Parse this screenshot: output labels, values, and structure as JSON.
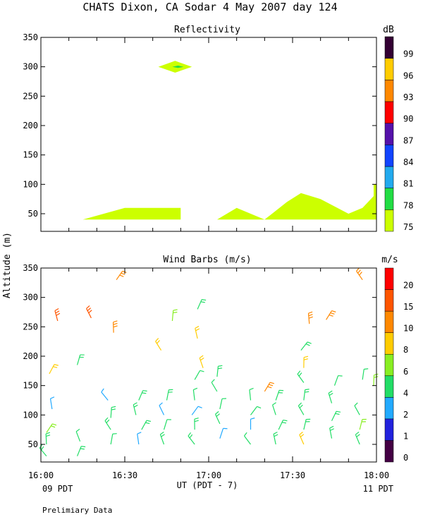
{
  "title": "CHATS Dixon, CA  Sodar   4 May 2007  day 124",
  "footer_note": "Prelimiary Data",
  "shared": {
    "ylabel": "Altitude (m)",
    "xlabel": "UT  (PDT - 7)",
    "x_ticks": [
      "16:00",
      "16:30",
      "17:00",
      "17:30",
      "18:00"
    ],
    "x_left_date": "09 PDT",
    "x_right_date": "11 PDT"
  },
  "chart_data": [
    {
      "type": "area",
      "title": "Reflectivity",
      "units": "dB",
      "y_ticks": [
        "50",
        "100",
        "150",
        "200",
        "250",
        "300",
        "350"
      ],
      "ylim": [
        20,
        350
      ],
      "xlim": [
        "16:00",
        "18:00"
      ],
      "colorbar_labels": [
        "75",
        "78",
        "81",
        "84",
        "87",
        "90",
        "93",
        "96",
        "99"
      ],
      "colorbar_colors": [
        "#ccff00",
        "#22dd44",
        "#22aaee",
        "#1144ff",
        "#5511aa",
        "#ff0000",
        "#ff8800",
        "#ffcc00",
        "#330033"
      ],
      "regions": [
        {
          "level": "75",
          "points": [
            [
              "16:15",
              40
            ],
            [
              "16:30",
              60
            ],
            [
              "16:50",
              60
            ],
            [
              "16:50",
              40
            ]
          ]
        },
        {
          "level": "75",
          "points": [
            [
              "17:03",
              40
            ],
            [
              "17:10",
              60
            ],
            [
              "17:20",
              40
            ],
            [
              "17:28",
              70
            ],
            [
              "17:33",
              85
            ],
            [
              "17:40",
              75
            ],
            [
              "17:50",
              50
            ],
            [
              "17:55",
              60
            ],
            [
              "17:59",
              80
            ],
            [
              "17:59",
              100
            ],
            [
              "18:00",
              100
            ],
            [
              "18:00",
              40
            ]
          ]
        },
        {
          "level": "75",
          "points": [
            [
              "16:42",
              300
            ],
            [
              "16:48",
              310
            ],
            [
              "16:54",
              300
            ],
            [
              "16:48",
              290
            ]
          ]
        },
        {
          "level": "78",
          "points": [
            [
              "16:47",
              300
            ],
            [
              "16:49",
              302
            ],
            [
              "16:51",
              300
            ],
            [
              "16:49",
              298
            ]
          ]
        }
      ]
    },
    {
      "type": "wind_barbs",
      "title": "Wind Barbs (m/s)",
      "units": "m/s",
      "y_ticks": [
        "50",
        "100",
        "150",
        "200",
        "250",
        "300",
        "350"
      ],
      "ylim": [
        20,
        350
      ],
      "xlim": [
        "16:00",
        "18:00"
      ],
      "colorbar_labels": [
        "0",
        "1",
        "2",
        "4",
        "6",
        "8",
        "10",
        "15",
        "20"
      ],
      "colorbar_colors": [
        "#440044",
        "#2222dd",
        "#22aaff",
        "#22dd66",
        "#88ee22",
        "#ffcc00",
        "#ff8800",
        "#ff5500",
        "#ff0000"
      ],
      "barbs": [
        {
          "time": "16:02",
          "alt": 30,
          "speed": 5
        },
        {
          "time": "16:02",
          "alt": 50,
          "speed": 5
        },
        {
          "time": "16:02",
          "alt": 70,
          "speed": 6
        },
        {
          "time": "16:04",
          "alt": 110,
          "speed": 3
        },
        {
          "time": "16:03",
          "alt": 170,
          "speed": 8
        },
        {
          "time": "16:06",
          "alt": 260,
          "speed": 15
        },
        {
          "time": "16:13",
          "alt": 30,
          "speed": 5
        },
        {
          "time": "16:14",
          "alt": 55,
          "speed": 4
        },
        {
          "time": "16:13",
          "alt": 185,
          "speed": 5
        },
        {
          "time": "16:18",
          "alt": 265,
          "speed": 15
        },
        {
          "time": "16:25",
          "alt": 50,
          "speed": 4
        },
        {
          "time": "16:25",
          "alt": 75,
          "speed": 5
        },
        {
          "time": "16:25",
          "alt": 95,
          "speed": 5
        },
        {
          "time": "16:24",
          "alt": 125,
          "speed": 3
        },
        {
          "time": "16:26",
          "alt": 240,
          "speed": 12
        },
        {
          "time": "16:27",
          "alt": 330,
          "speed": 12
        },
        {
          "time": "16:35",
          "alt": 50,
          "speed": 3
        },
        {
          "time": "16:36",
          "alt": 75,
          "speed": 5
        },
        {
          "time": "16:34",
          "alt": 100,
          "speed": 5
        },
        {
          "time": "16:35",
          "alt": 125,
          "speed": 5
        },
        {
          "time": "16:44",
          "alt": 50,
          "speed": 5
        },
        {
          "time": "16:44",
          "alt": 75,
          "speed": 4
        },
        {
          "time": "16:44",
          "alt": 100,
          "speed": 3
        },
        {
          "time": "16:45",
          "alt": 125,
          "speed": 5
        },
        {
          "time": "16:43",
          "alt": 210,
          "speed": 8
        },
        {
          "time": "16:47",
          "alt": 260,
          "speed": 6
        },
        {
          "time": "16:55",
          "alt": 50,
          "speed": 5
        },
        {
          "time": "16:55",
          "alt": 75,
          "speed": 5
        },
        {
          "time": "16:54",
          "alt": 100,
          "speed": 3
        },
        {
          "time": "16:55",
          "alt": 125,
          "speed": 4
        },
        {
          "time": "16:55",
          "alt": 160,
          "speed": 4
        },
        {
          "time": "16:56",
          "alt": 230,
          "speed": 8
        },
        {
          "time": "16:56",
          "alt": 280,
          "speed": 5
        },
        {
          "time": "16:58",
          "alt": 180,
          "speed": 8
        },
        {
          "time": "17:04",
          "alt": 60,
          "speed": 3
        },
        {
          "time": "17:04",
          "alt": 85,
          "speed": 5
        },
        {
          "time": "17:04",
          "alt": 110,
          "speed": 4
        },
        {
          "time": "17:03",
          "alt": 140,
          "speed": 4
        },
        {
          "time": "17:03",
          "alt": 165,
          "speed": 5
        },
        {
          "time": "17:15",
          "alt": 50,
          "speed": 4
        },
        {
          "time": "17:15",
          "alt": 75,
          "speed": 3
        },
        {
          "time": "17:15",
          "alt": 100,
          "speed": 4
        },
        {
          "time": "17:15",
          "alt": 125,
          "speed": 4
        },
        {
          "time": "17:20",
          "alt": 140,
          "speed": 10
        },
        {
          "time": "17:24",
          "alt": 50,
          "speed": 5
        },
        {
          "time": "17:25",
          "alt": 75,
          "speed": 5
        },
        {
          "time": "17:24",
          "alt": 100,
          "speed": 4
        },
        {
          "time": "17:24",
          "alt": 125,
          "speed": 5
        },
        {
          "time": "17:34",
          "alt": 50,
          "speed": 8
        },
        {
          "time": "17:34",
          "alt": 75,
          "speed": 5
        },
        {
          "time": "17:34",
          "alt": 100,
          "speed": 5
        },
        {
          "time": "17:34",
          "alt": 125,
          "speed": 5
        },
        {
          "time": "17:34",
          "alt": 155,
          "speed": 5
        },
        {
          "time": "17:34",
          "alt": 180,
          "speed": 8
        },
        {
          "time": "17:33",
          "alt": 210,
          "speed": 5
        },
        {
          "time": "17:36",
          "alt": 255,
          "speed": 10
        },
        {
          "time": "17:42",
          "alt": 262,
          "speed": 12
        },
        {
          "time": "17:44",
          "alt": 60,
          "speed": 5
        },
        {
          "time": "17:44",
          "alt": 90,
          "speed": 5
        },
        {
          "time": "17:44",
          "alt": 120,
          "speed": 5
        },
        {
          "time": "17:45",
          "alt": 150,
          "speed": 4
        },
        {
          "time": "17:54",
          "alt": 50,
          "speed": 5
        },
        {
          "time": "17:54",
          "alt": 75,
          "speed": 6
        },
        {
          "time": "17:54",
          "alt": 100,
          "speed": 4
        },
        {
          "time": "17:55",
          "alt": 160,
          "speed": 4
        },
        {
          "time": "17:55",
          "alt": 330,
          "speed": 12
        },
        {
          "time": "17:59",
          "alt": 150,
          "speed": 6
        }
      ]
    }
  ]
}
